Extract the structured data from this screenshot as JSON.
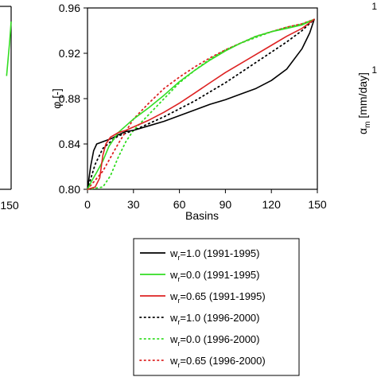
{
  "chart_data": {
    "type": "line",
    "title": "",
    "xlabel": "Basins",
    "ylabel": "φ [-]",
    "xlim": [
      0,
      150
    ],
    "ylim": [
      0.8,
      0.96
    ],
    "x_ticks": [
      "0",
      "30",
      "60",
      "90",
      "120",
      "150"
    ],
    "y_ticks": [
      "0.80",
      "0.84",
      "0.88",
      "0.92",
      "0.96"
    ],
    "legend_position": "bottom-center",
    "series": [
      {
        "name": "w_r=1.0 (1991-1995)",
        "name_parts": [
          "w",
          "r",
          "=1.0 (1991-1995)"
        ],
        "color": "#000000",
        "style": "solid",
        "x": [
          0,
          2,
          4,
          6,
          8,
          12,
          16,
          20,
          25,
          30,
          40,
          50,
          60,
          70,
          80,
          90,
          100,
          110,
          120,
          130,
          140,
          145,
          148
        ],
        "y": [
          0.8,
          0.82,
          0.834,
          0.84,
          0.841,
          0.843,
          0.845,
          0.848,
          0.851,
          0.852,
          0.856,
          0.86,
          0.865,
          0.87,
          0.875,
          0.879,
          0.884,
          0.889,
          0.896,
          0.906,
          0.924,
          0.938,
          0.95
        ]
      },
      {
        "name": "w_r=0.0 (1991-1995)",
        "name_parts": [
          "w",
          "r",
          "=0.0 (1991-1995)"
        ],
        "color": "#33dd22",
        "style": "solid",
        "x": [
          0,
          3,
          6,
          10,
          14,
          20,
          25,
          30,
          40,
          50,
          60,
          70,
          80,
          90,
          100,
          110,
          120,
          130,
          140,
          148
        ],
        "y": [
          0.8,
          0.808,
          0.815,
          0.825,
          0.838,
          0.85,
          0.856,
          0.862,
          0.872,
          0.883,
          0.895,
          0.905,
          0.914,
          0.922,
          0.929,
          0.935,
          0.939,
          0.942,
          0.945,
          0.95
        ]
      },
      {
        "name": "w_r=0.65 (1991-1995)",
        "name_parts": [
          "w",
          "r",
          "=0.65 (1991-1995)"
        ],
        "color": "#dd2222",
        "style": "solid",
        "x": [
          0,
          5,
          8,
          10,
          12,
          15,
          20,
          25,
          30,
          40,
          50,
          60,
          70,
          80,
          90,
          100,
          110,
          120,
          130,
          140,
          148
        ],
        "y": [
          0.8,
          0.802,
          0.81,
          0.83,
          0.84,
          0.846,
          0.85,
          0.852,
          0.855,
          0.861,
          0.868,
          0.876,
          0.885,
          0.894,
          0.903,
          0.911,
          0.919,
          0.927,
          0.935,
          0.942,
          0.95
        ]
      },
      {
        "name": "w_r=1.0 (1996-2000)",
        "name_parts": [
          "w",
          "r",
          "=1.0 (1996-2000)"
        ],
        "color": "#000000",
        "style": "dotted",
        "x": [
          0,
          5,
          10,
          15,
          20,
          30,
          40,
          50,
          60,
          70,
          80,
          90,
          100,
          110,
          120,
          130,
          140,
          148
        ],
        "y": [
          0.8,
          0.822,
          0.836,
          0.842,
          0.847,
          0.852,
          0.858,
          0.864,
          0.871,
          0.878,
          0.886,
          0.894,
          0.903,
          0.912,
          0.921,
          0.93,
          0.94,
          0.95
        ]
      },
      {
        "name": "w_r=0.0 (1996-2000)",
        "name_parts": [
          "w",
          "r",
          "=0.0 (1996-2000)"
        ],
        "color": "#33dd22",
        "style": "dotted",
        "x": [
          0,
          10,
          15,
          20,
          25,
          30,
          40,
          50,
          60,
          70,
          80,
          90,
          100,
          110,
          120,
          130,
          140,
          148
        ],
        "y": [
          0.8,
          0.802,
          0.812,
          0.828,
          0.842,
          0.852,
          0.866,
          0.88,
          0.894,
          0.905,
          0.915,
          0.923,
          0.929,
          0.934,
          0.939,
          0.943,
          0.946,
          0.95
        ]
      },
      {
        "name": "w_r=0.65 (1996-2000)",
        "name_parts": [
          "w",
          "r",
          "=0.65 (1996-2000)"
        ],
        "color": "#dd2222",
        "style": "dotted",
        "x": [
          0,
          10,
          20,
          30,
          40,
          50,
          60,
          70,
          80,
          90,
          100,
          110,
          120,
          130,
          140,
          148
        ],
        "y": [
          0.8,
          0.816,
          0.84,
          0.862,
          0.876,
          0.889,
          0.899,
          0.908,
          0.916,
          0.923,
          0.929,
          0.935,
          0.939,
          0.943,
          0.946,
          0.95
        ]
      }
    ]
  },
  "left_fragment": {
    "tick_label": "150",
    "line_color": "#33dd22",
    "line_x": [
      147,
      148,
      149,
      150
    ],
    "line_y": [
      0.9,
      0.915,
      0.93,
      0.948
    ]
  },
  "right_fragment": {
    "ylabel_symbol": "α",
    "ylabel_sub": "m",
    "ylabel_unit": " [mm/day]",
    "tick_marks": [
      "1",
      "1"
    ]
  }
}
